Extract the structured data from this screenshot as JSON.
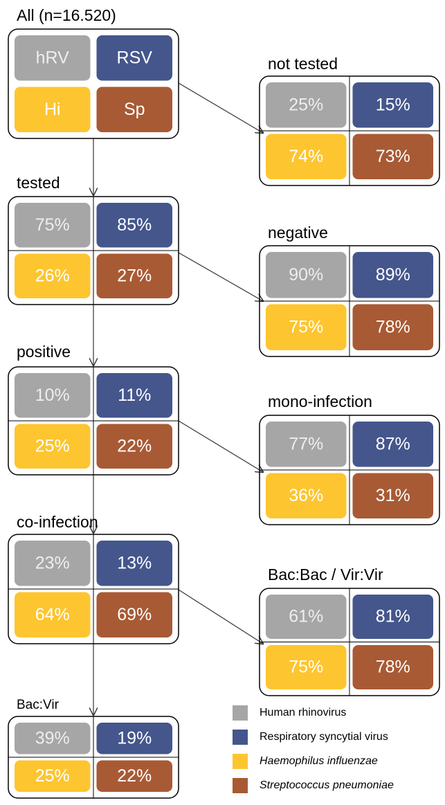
{
  "nodes": [
    {
      "label": "All (n=16.520)",
      "cells": [
        "hRV",
        "RSV",
        "Hi",
        "Sp"
      ]
    },
    {
      "label": "not tested",
      "cells": [
        "25%",
        "15%",
        "74%",
        "73%"
      ]
    },
    {
      "label": "tested",
      "cells": [
        "75%",
        "85%",
        "26%",
        "27%"
      ]
    },
    {
      "label": "negative",
      "cells": [
        "90%",
        "89%",
        "75%",
        "78%"
      ]
    },
    {
      "label": "positive",
      "cells": [
        "10%",
        "11%",
        "25%",
        "22%"
      ]
    },
    {
      "label": "mono-infection",
      "cells": [
        "77%",
        "87%",
        "36%",
        "31%"
      ]
    },
    {
      "label": "co-infection",
      "cells": [
        "23%",
        "13%",
        "64%",
        "69%"
      ]
    },
    {
      "label": "Bac:Bac / Vir:Vir",
      "cells": [
        "61%",
        "81%",
        "75%",
        "78%"
      ]
    },
    {
      "label": "Bac:Vir",
      "cells": [
        "39%",
        "19%",
        "25%",
        "22%"
      ]
    }
  ],
  "legend": [
    "Human rhinovirus",
    "Respiratory syncytial virus",
    "Haemophilus influenzae",
    "Streptococcus pneumoniae"
  ]
}
